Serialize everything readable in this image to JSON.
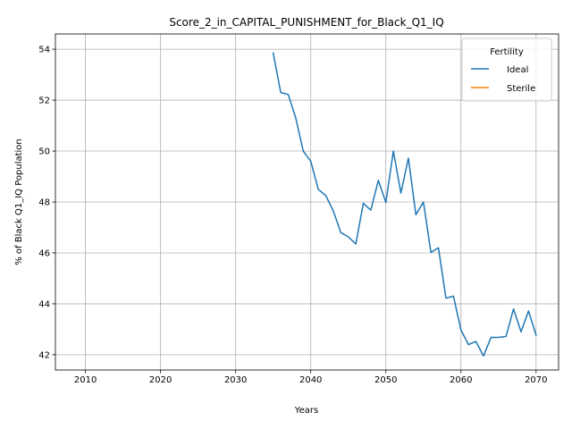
{
  "chart_data": {
    "type": "line",
    "title": "Score_2_in_CAPITAL_PUNISHMENT_for_Black_Q1_IQ",
    "xlabel": "Years",
    "ylabel": "% of Black Q1_IQ Population",
    "xlim": [
      2006,
      2073
    ],
    "ylim": [
      41.4,
      54.6
    ],
    "xticks": [
      2010,
      2020,
      2030,
      2040,
      2050,
      2060,
      2070
    ],
    "yticks": [
      42,
      44,
      46,
      48,
      50,
      52,
      54
    ],
    "grid": true,
    "legend": {
      "title": "Fertility",
      "placement": "top-right"
    },
    "series": [
      {
        "name": "Ideal",
        "color": "#1f77b4",
        "x": [
          2035,
          2036,
          2037,
          2038,
          2039,
          2040,
          2041,
          2042,
          2043,
          2044,
          2045,
          2046,
          2047,
          2048,
          2049,
          2050,
          2051,
          2052,
          2053,
          2054,
          2055,
          2056,
          2057,
          2058,
          2059,
          2060,
          2061,
          2062,
          2063,
          2064,
          2065,
          2066,
          2067,
          2068,
          2069,
          2070
        ],
        "y": [
          53.85,
          52.3,
          52.22,
          51.3,
          50.0,
          49.6,
          48.5,
          48.25,
          47.65,
          46.8,
          46.63,
          46.35,
          47.95,
          47.68,
          48.85,
          47.98,
          50.0,
          48.35,
          49.72,
          47.5,
          48.0,
          46.02,
          46.2,
          44.22,
          44.3,
          42.97,
          42.4,
          42.52,
          41.95,
          42.68,
          42.68,
          42.72,
          43.8,
          42.9,
          43.72,
          42.77
        ]
      },
      {
        "name": "Sterile",
        "color": "#ff7f0e",
        "x": [],
        "y": []
      }
    ]
  }
}
